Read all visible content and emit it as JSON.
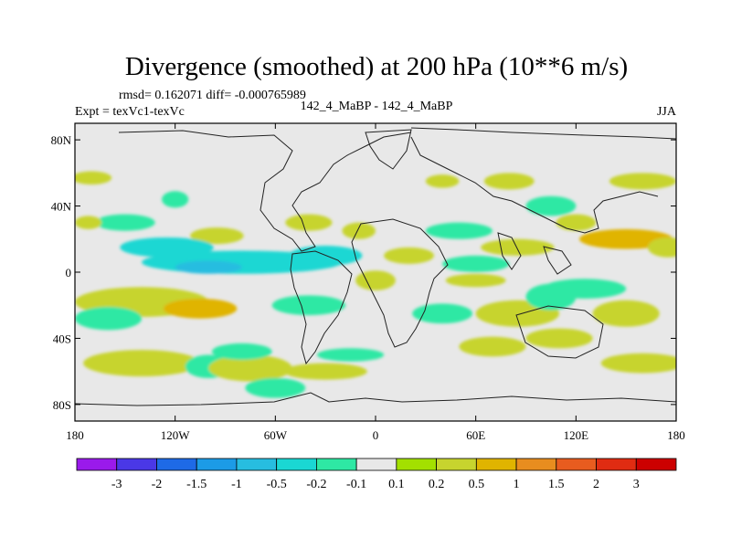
{
  "chart_data": {
    "type": "heatmap",
    "title": "Divergence (smoothed) at 200 hPa (10**6 m/s)",
    "stats": "rmsd= 0.162071 diff= -0.000765989",
    "experiment": "Expt = texVc1-texVc",
    "comparison": "142_4_MaBP - 142_4_MaBP",
    "season": "JJA",
    "x_ticks": [
      {
        "value": -180,
        "label": "180"
      },
      {
        "value": -120,
        "label": "120W"
      },
      {
        "value": -60,
        "label": "60W"
      },
      {
        "value": 0,
        "label": "0"
      },
      {
        "value": 60,
        "label": "60E"
      },
      {
        "value": 120,
        "label": "120E"
      },
      {
        "value": 180,
        "label": "180"
      }
    ],
    "y_ticks": [
      {
        "value": 80,
        "label": "80N"
      },
      {
        "value": 40,
        "label": "40N"
      },
      {
        "value": 0,
        "label": "0"
      },
      {
        "value": -40,
        "label": "40S"
      },
      {
        "value": -80,
        "label": "80S"
      }
    ],
    "xlim": [
      -180,
      180
    ],
    "ylim": [
      -90,
      90
    ],
    "colorbar": {
      "levels": [
        "-3",
        "-2",
        "-1.5",
        "-1",
        "-0.5",
        "-0.2",
        "-0.1",
        "0.1",
        "0.2",
        "0.5",
        "1",
        "1.5",
        "2",
        "3"
      ],
      "colors": [
        "#9a1aeb",
        "#4a38e6",
        "#1e6ae6",
        "#1c9be6",
        "#27bde0",
        "#1ad7d3",
        "#2ee8a4",
        "#e8e8e8",
        "#a3e000",
        "#c7d42e",
        "#e0b400",
        "#e88d1f",
        "#e85c1f",
        "#e02c12",
        "#cc0000"
      ]
    },
    "blobs": [
      {
        "lon": -170,
        "lat": 57,
        "rx": 12,
        "ry": 4,
        "value": 0.3
      },
      {
        "lon": -150,
        "lat": 30,
        "rx": 18,
        "ry": 5,
        "value": -0.2
      },
      {
        "lon": -172,
        "lat": 30,
        "rx": 8,
        "ry": 4,
        "value": 0.2
      },
      {
        "lon": -120,
        "lat": 44,
        "rx": 8,
        "ry": 5,
        "value": -0.2
      },
      {
        "lon": -95,
        "lat": 22,
        "rx": 16,
        "ry": 5,
        "value": 0.25
      },
      {
        "lon": -125,
        "lat": 15,
        "rx": 28,
        "ry": 6,
        "value": -0.3
      },
      {
        "lon": -80,
        "lat": 6,
        "rx": 60,
        "ry": 7,
        "value": -0.35
      },
      {
        "lon": -100,
        "lat": 3,
        "rx": 20,
        "ry": 4,
        "value": -0.6
      },
      {
        "lon": -140,
        "lat": -18,
        "rx": 40,
        "ry": 9,
        "value": 0.4
      },
      {
        "lon": -105,
        "lat": -22,
        "rx": 22,
        "ry": 6,
        "value": 0.7
      },
      {
        "lon": -160,
        "lat": -28,
        "rx": 20,
        "ry": 7,
        "value": -0.2
      },
      {
        "lon": -140,
        "lat": -55,
        "rx": 35,
        "ry": 8,
        "value": 0.2
      },
      {
        "lon": -100,
        "lat": -57,
        "rx": 14,
        "ry": 7,
        "value": -0.15
      },
      {
        "lon": -75,
        "lat": -58,
        "rx": 25,
        "ry": 8,
        "value": 0.2
      },
      {
        "lon": -80,
        "lat": -48,
        "rx": 18,
        "ry": 5,
        "value": -0.15
      },
      {
        "lon": -60,
        "lat": -70,
        "rx": 18,
        "ry": 6,
        "value": -0.15
      },
      {
        "lon": -30,
        "lat": -60,
        "rx": 25,
        "ry": 5,
        "value": 0.4
      },
      {
        "lon": -15,
        "lat": -50,
        "rx": 20,
        "ry": 4,
        "value": -0.15
      },
      {
        "lon": -40,
        "lat": 30,
        "rx": 14,
        "ry": 5,
        "value": 0.3
      },
      {
        "lon": -10,
        "lat": 25,
        "rx": 10,
        "ry": 5,
        "value": 0.25
      },
      {
        "lon": -30,
        "lat": 10,
        "rx": 22,
        "ry": 6,
        "value": -0.3
      },
      {
        "lon": 0,
        "lat": -5,
        "rx": 12,
        "ry": 6,
        "value": 0.35
      },
      {
        "lon": -40,
        "lat": -20,
        "rx": 22,
        "ry": 6,
        "value": -0.2
      },
      {
        "lon": 20,
        "lat": 10,
        "rx": 15,
        "ry": 5,
        "value": 0.3
      },
      {
        "lon": 50,
        "lat": 25,
        "rx": 20,
        "ry": 5,
        "value": -0.15
      },
      {
        "lon": 85,
        "lat": 15,
        "rx": 22,
        "ry": 5,
        "value": 0.3
      },
      {
        "lon": 60,
        "lat": 5,
        "rx": 20,
        "ry": 5,
        "value": -0.2
      },
      {
        "lon": 60,
        "lat": -5,
        "rx": 18,
        "ry": 4,
        "value": 0.25
      },
      {
        "lon": 40,
        "lat": -25,
        "rx": 18,
        "ry": 6,
        "value": -0.2
      },
      {
        "lon": 85,
        "lat": -25,
        "rx": 25,
        "ry": 8,
        "value": 0.45
      },
      {
        "lon": 70,
        "lat": -45,
        "rx": 20,
        "ry": 6,
        "value": 0.2
      },
      {
        "lon": 110,
        "lat": -40,
        "rx": 20,
        "ry": 6,
        "value": 0.35
      },
      {
        "lon": 105,
        "lat": -15,
        "rx": 15,
        "ry": 8,
        "value": -0.2
      },
      {
        "lon": 125,
        "lat": -10,
        "rx": 25,
        "ry": 6,
        "value": -0.2
      },
      {
        "lon": 150,
        "lat": -25,
        "rx": 20,
        "ry": 8,
        "value": 0.25
      },
      {
        "lon": 160,
        "lat": -55,
        "rx": 25,
        "ry": 6,
        "value": 0.2
      },
      {
        "lon": 150,
        "lat": 20,
        "rx": 28,
        "ry": 6,
        "value": 0.5
      },
      {
        "lon": 175,
        "lat": 15,
        "rx": 12,
        "ry": 6,
        "value": 0.35
      },
      {
        "lon": 105,
        "lat": 40,
        "rx": 15,
        "ry": 6,
        "value": -0.2
      },
      {
        "lon": 80,
        "lat": 55,
        "rx": 15,
        "ry": 5,
        "value": 0.2
      },
      {
        "lon": 160,
        "lat": 55,
        "rx": 20,
        "ry": 5,
        "value": 0.3
      },
      {
        "lon": 120,
        "lat": 30,
        "rx": 12,
        "ry": 5,
        "value": 0.2
      },
      {
        "lon": 40,
        "lat": 55,
        "rx": 10,
        "ry": 4,
        "value": 0.2
      }
    ]
  }
}
